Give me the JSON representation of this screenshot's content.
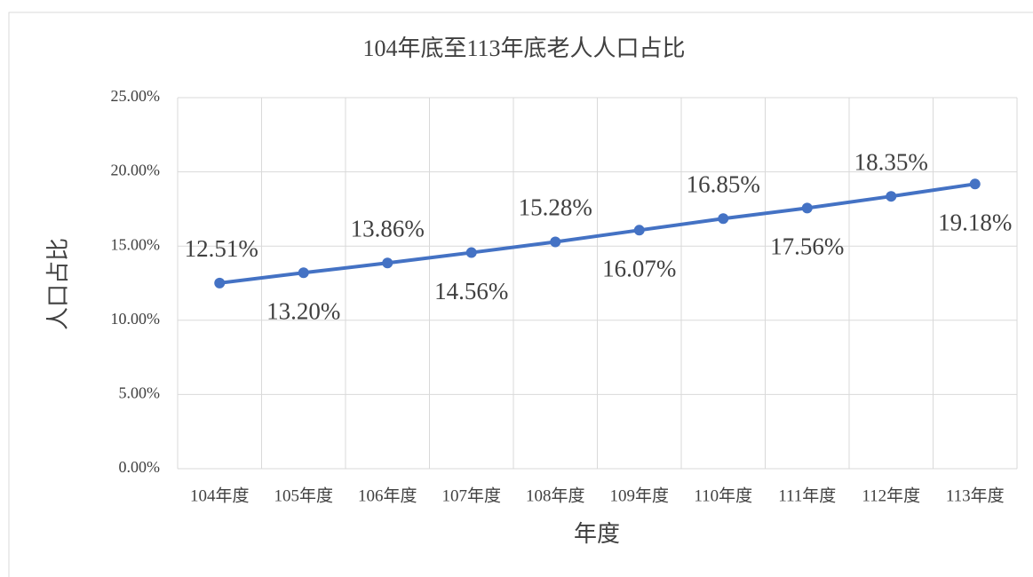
{
  "chart_data": {
    "type": "line",
    "title": "104年底至113年底老人人口占比",
    "x_label": "年度",
    "y_label": "人口占比",
    "categories": [
      "104年度",
      "105年度",
      "106年度",
      "107年度",
      "108年度",
      "109年度",
      "110年度",
      "111年度",
      "112年度",
      "113年度"
    ],
    "series": [
      {
        "name": "人口占比",
        "color": "#4472c4",
        "values": [
          12.51,
          13.2,
          13.86,
          14.56,
          15.28,
          16.07,
          16.85,
          17.56,
          18.35,
          19.18
        ],
        "value_labels": [
          "12.51%",
          "13.20%",
          "13.86%",
          "14.56%",
          "15.28%",
          "16.07%",
          "16.85%",
          "17.56%",
          "18.35%",
          "19.18%"
        ]
      }
    ],
    "ylim": [
      0,
      25
    ],
    "yticks": [
      {
        "value": 0,
        "label": "0.00%"
      },
      {
        "value": 5,
        "label": "5.00%"
      },
      {
        "value": 10,
        "label": "10.00%"
      },
      {
        "value": 15,
        "label": "15.00%"
      },
      {
        "value": 20,
        "label": "20.00%"
      },
      {
        "value": 25,
        "label": "25.00%"
      }
    ],
    "grid": true
  }
}
